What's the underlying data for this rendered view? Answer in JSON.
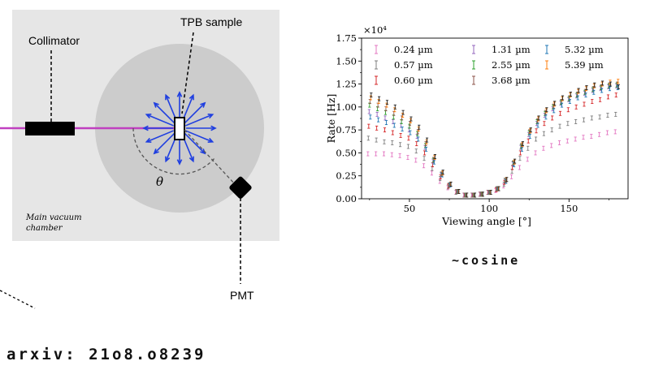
{
  "diagram": {
    "labels": {
      "collimator": "Collimator",
      "sample": "TPB sample",
      "pmt": "PMT",
      "theta": "θ",
      "chamber_line1": "Main vacuum",
      "chamber_line2": "chamber"
    },
    "colors": {
      "chamber": "#e6e6e6",
      "wheel": "#cccccc",
      "beam": "#c040c0",
      "arrows": "#1f3fe0"
    }
  },
  "chart_data": {
    "type": "scatter",
    "title": "",
    "xlabel": "Viewing angle [°]",
    "ylabel": "Rate [Hz]",
    "y_multiplier": "×10⁴",
    "xlim": [
      20,
      187
    ],
    "ylim": [
      0,
      1.75
    ],
    "x_ticks": [
      50,
      100,
      150
    ],
    "y_ticks": [
      "0.00",
      "0.25",
      "0.50",
      "0.75",
      "1.00",
      "1.25",
      "1.50",
      "1.75"
    ],
    "legend_position": "top",
    "grid": false,
    "x": [
      25,
      30,
      35,
      40,
      45,
      50,
      55,
      60,
      65,
      70,
      75,
      80,
      85,
      90,
      95,
      100,
      105,
      110,
      115,
      120,
      125,
      130,
      135,
      140,
      145,
      150,
      155,
      160,
      165,
      170,
      175,
      180
    ],
    "series": [
      {
        "name": "0.24 µm",
        "color": "#e377c2",
        "values": [
          0.49,
          0.49,
          0.49,
          0.48,
          0.47,
          0.45,
          0.42,
          0.36,
          0.28,
          0.19,
          0.12,
          0.07,
          0.04,
          0.04,
          0.05,
          0.07,
          0.09,
          0.14,
          0.24,
          0.34,
          0.43,
          0.5,
          0.55,
          0.58,
          0.61,
          0.63,
          0.65,
          0.67,
          0.68,
          0.7,
          0.72,
          0.73
        ]
      },
      {
        "name": "0.57 µm",
        "color": "#7f7f7f",
        "values": [
          0.66,
          0.64,
          0.62,
          0.61,
          0.59,
          0.57,
          0.52,
          0.44,
          0.33,
          0.22,
          0.13,
          0.07,
          0.04,
          0.04,
          0.05,
          0.07,
          0.1,
          0.16,
          0.3,
          0.44,
          0.55,
          0.65,
          0.71,
          0.75,
          0.79,
          0.82,
          0.84,
          0.86,
          0.88,
          0.89,
          0.91,
          0.92
        ]
      },
      {
        "name": "0.60 µm",
        "color": "#d62728",
        "values": [
          0.79,
          0.77,
          0.75,
          0.72,
          0.69,
          0.66,
          0.6,
          0.5,
          0.37,
          0.24,
          0.14,
          0.08,
          0.04,
          0.04,
          0.05,
          0.07,
          0.1,
          0.18,
          0.34,
          0.5,
          0.63,
          0.74,
          0.82,
          0.88,
          0.93,
          0.97,
          1.0,
          1.03,
          1.06,
          1.08,
          1.11,
          1.13
        ]
      },
      {
        "name": "1.31 µm",
        "color": "#9467bd",
        "values": [
          0.95,
          0.92,
          0.88,
          0.84,
          0.8,
          0.75,
          0.68,
          0.56,
          0.41,
          0.26,
          0.15,
          0.08,
          0.04,
          0.04,
          0.05,
          0.07,
          0.11,
          0.2,
          0.38,
          0.56,
          0.7,
          0.82,
          0.91,
          0.98,
          1.04,
          1.08,
          1.12,
          1.15,
          1.18,
          1.2,
          1.22,
          1.23
        ]
      },
      {
        "name": "2.55 µm",
        "color": "#2ca02c",
        "values": [
          1.02,
          0.98,
          0.94,
          0.89,
          0.84,
          0.79,
          0.71,
          0.58,
          0.42,
          0.27,
          0.15,
          0.08,
          0.04,
          0.04,
          0.05,
          0.07,
          0.11,
          0.2,
          0.39,
          0.57,
          0.72,
          0.84,
          0.93,
          1.0,
          1.05,
          1.09,
          1.13,
          1.16,
          1.19,
          1.21,
          1.23,
          1.24
        ]
      },
      {
        "name": "3.68 µm",
        "color": "#8c564b",
        "values": [
          1.06,
          1.02,
          0.98,
          0.93,
          0.88,
          0.82,
          0.73,
          0.6,
          0.43,
          0.27,
          0.15,
          0.08,
          0.04,
          0.04,
          0.05,
          0.07,
          0.11,
          0.2,
          0.39,
          0.58,
          0.73,
          0.85,
          0.94,
          1.01,
          1.06,
          1.1,
          1.14,
          1.17,
          1.2,
          1.22,
          1.24,
          1.25
        ]
      },
      {
        "name": "5.32 µm",
        "color": "#1f77b4",
        "values": [
          0.89,
          0.86,
          0.83,
          0.8,
          0.76,
          0.72,
          0.65,
          0.54,
          0.4,
          0.26,
          0.15,
          0.08,
          0.04,
          0.04,
          0.05,
          0.07,
          0.11,
          0.19,
          0.37,
          0.54,
          0.68,
          0.8,
          0.89,
          0.96,
          1.02,
          1.06,
          1.1,
          1.13,
          1.16,
          1.18,
          1.2,
          1.21
        ]
      },
      {
        "name": "5.39 µm",
        "color": "#ff7f0e",
        "values": [
          1.1,
          1.06,
          1.02,
          0.97,
          0.91,
          0.85,
          0.76,
          0.62,
          0.45,
          0.28,
          0.16,
          0.08,
          0.04,
          0.04,
          0.05,
          0.07,
          0.11,
          0.21,
          0.4,
          0.59,
          0.74,
          0.87,
          0.96,
          1.03,
          1.09,
          1.13,
          1.17,
          1.2,
          1.23,
          1.25,
          1.27,
          1.28
        ]
      },
      {
        "name": "",
        "color": "#222222",
        "values": [
          1.13,
          1.09,
          1.05,
          1.0,
          0.94,
          0.87,
          0.78,
          0.64,
          0.46,
          0.29,
          0.16,
          0.08,
          0.04,
          0.04,
          0.05,
          0.07,
          0.11,
          0.21,
          0.41,
          0.6,
          0.75,
          0.88,
          0.97,
          1.04,
          1.1,
          1.14,
          1.18,
          1.21,
          1.24,
          1.26,
          1.25,
          1.22
        ]
      }
    ]
  },
  "annotations": {
    "cosine": "~cosine",
    "arxiv": "arxiv: 21o8.o8239"
  }
}
